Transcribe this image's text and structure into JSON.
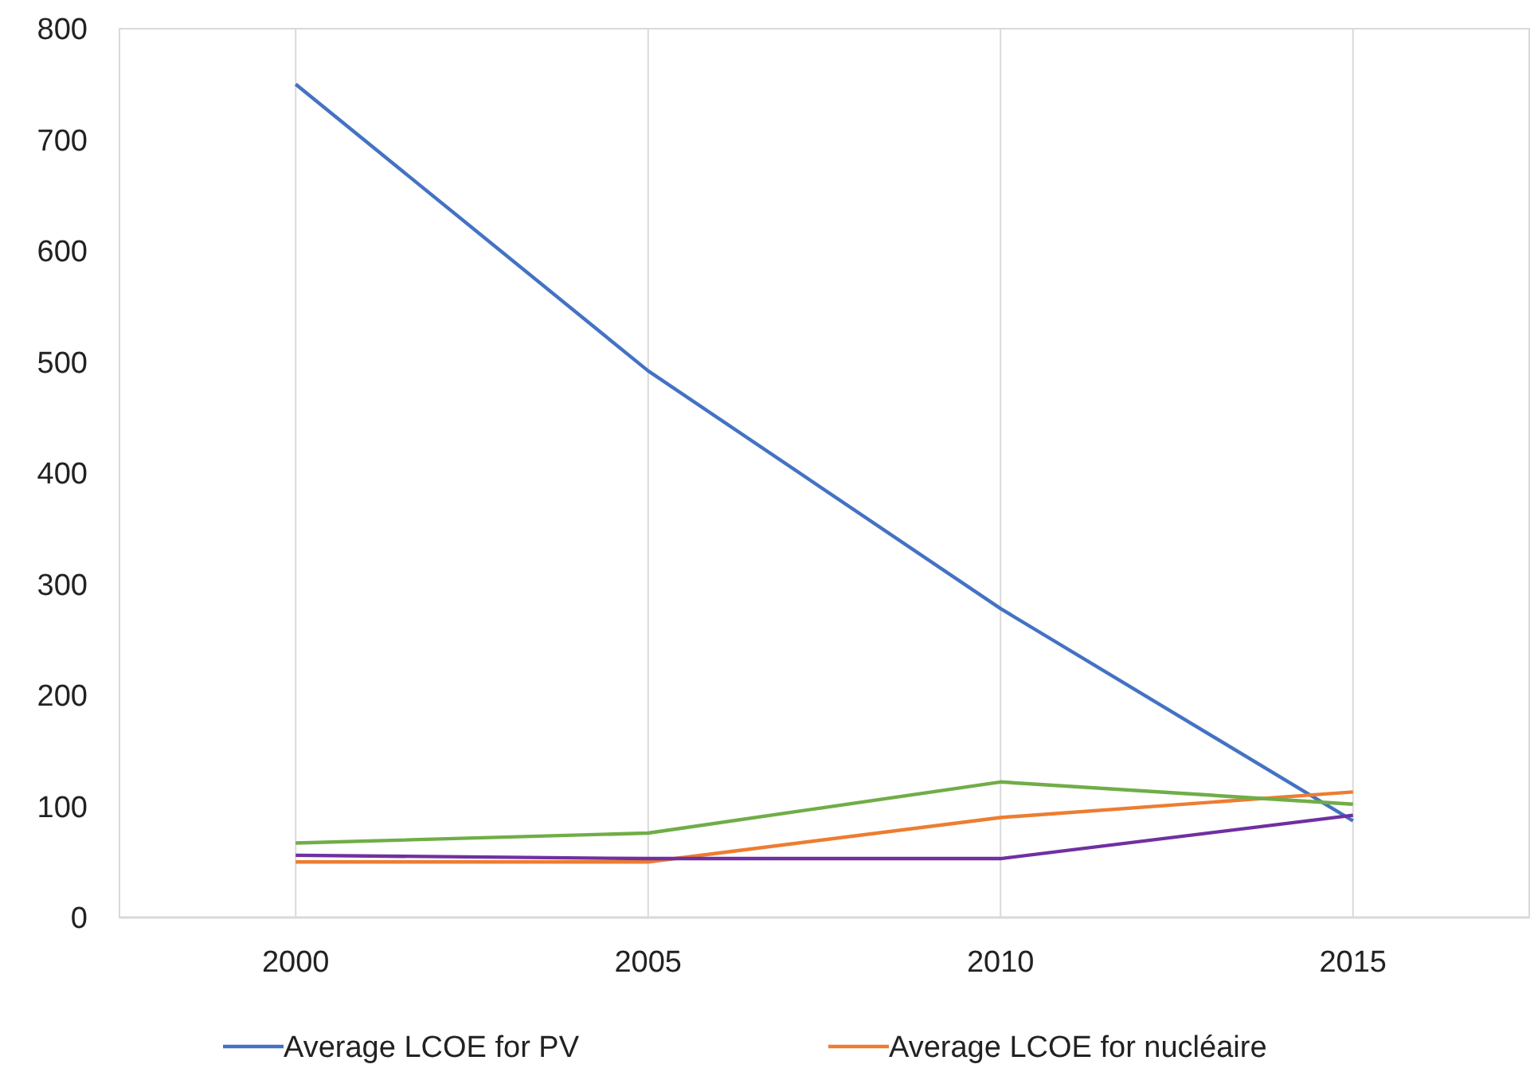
{
  "chart_data": {
    "type": "line",
    "categories": [
      "2000",
      "2005",
      "2010",
      "2015"
    ],
    "series": [
      {
        "name": "Average LCOE for PV",
        "color": "#4472c4",
        "values": [
          750,
          492,
          278,
          87
        ]
      },
      {
        "name": "Average LCOE for nucléaire",
        "color": "#ed7d31",
        "values": [
          50,
          50,
          90,
          113
        ]
      },
      {
        "color": "#70ad47",
        "values": [
          67,
          76,
          122,
          102
        ]
      },
      {
        "color": "#7030a0",
        "values": [
          56,
          53,
          53,
          92
        ]
      }
    ],
    "ylim": [
      0,
      800
    ],
    "yticks": [
      0,
      100,
      200,
      300,
      400,
      500,
      600,
      700,
      800
    ],
    "grid": "x",
    "legend": "bottom",
    "marker": "none",
    "line_style": "solid"
  }
}
